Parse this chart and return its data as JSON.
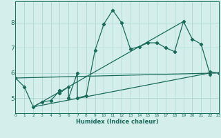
{
  "xlabel": "Humidex (Indice chaleur)",
  "bg_color": "#d4eeeb",
  "grid_color": "#a8d4cf",
  "line_color": "#1a6b5a",
  "spine_color": "#1a6b5a",
  "xlim": [
    0,
    23
  ],
  "ylim": [
    4.4,
    8.85
  ],
  "yticks": [
    5,
    6,
    7,
    8
  ],
  "xticks": [
    0,
    1,
    2,
    3,
    4,
    5,
    6,
    7,
    8,
    9,
    10,
    11,
    12,
    13,
    14,
    15,
    16,
    17,
    18,
    19,
    20,
    21,
    22,
    23
  ],
  "series": [
    [
      0,
      5.8
    ],
    [
      1,
      5.45
    ],
    [
      2,
      4.65
    ],
    [
      3,
      4.85
    ],
    [
      4,
      4.9
    ],
    [
      5,
      5.3
    ],
    [
      5,
      5.2
    ],
    [
      6,
      5.45
    ],
    [
      6,
      5.0
    ],
    [
      7,
      6.0
    ],
    [
      7,
      5.0
    ],
    [
      8,
      5.1
    ],
    [
      9,
      6.9
    ],
    [
      10,
      7.95
    ],
    [
      11,
      8.5
    ],
    [
      12,
      8.0
    ],
    [
      13,
      6.95
    ],
    [
      14,
      7.05
    ],
    [
      15,
      7.2
    ],
    [
      16,
      7.2
    ],
    [
      17,
      7.0
    ],
    [
      18,
      6.85
    ],
    [
      19,
      8.05
    ],
    [
      20,
      7.35
    ],
    [
      21,
      7.15
    ],
    [
      22,
      5.95
    ],
    [
      22,
      6.05
    ],
    [
      23,
      6.0
    ]
  ],
  "line1_x": [
    0,
    23
  ],
  "line1_y": [
    5.8,
    6.0
  ],
  "line2_x": [
    2,
    22
  ],
  "line2_y": [
    4.65,
    6.0
  ],
  "line3_x": [
    2,
    19
  ],
  "line3_y": [
    4.65,
    8.05
  ]
}
